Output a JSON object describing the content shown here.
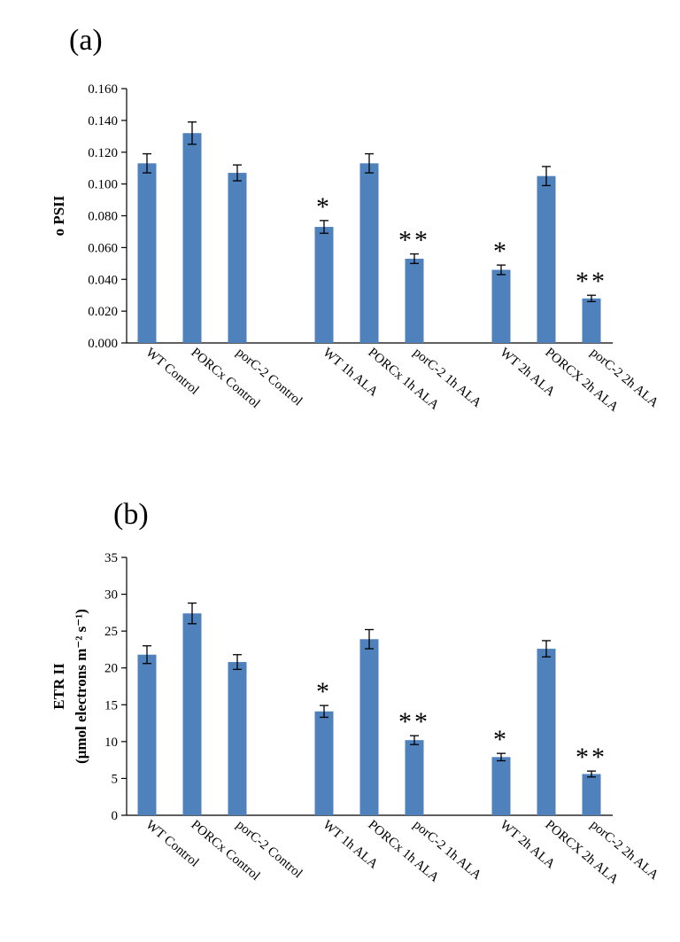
{
  "chart_data": [
    {
      "type": "bar",
      "panel_label": "(a)",
      "title": "",
      "xlabel": "",
      "ylabel": "ο PSII",
      "ylim": [
        0,
        0.16
      ],
      "ytick_step": 0.02,
      "ytick_labels": [
        "0.000",
        "0.020",
        "0.040",
        "0.060",
        "0.080",
        "0.100",
        "0.120",
        "0.140",
        "0.160"
      ],
      "categories": [
        "WT Control",
        "PORCx Control",
        "porC-2 Control",
        "WT 1h ALA",
        "PORCx 1h ALA",
        "porC-2 1h ALA",
        "WT 2h ALA",
        "PORCX 2h ALA",
        "porC-2 2h ALA"
      ],
      "groups": [
        [
          0,
          1,
          2
        ],
        [
          3,
          4,
          5
        ],
        [
          6,
          7,
          8
        ]
      ],
      "values": [
        0.113,
        0.132,
        0.107,
        0.073,
        0.113,
        0.053,
        0.046,
        0.105,
        0.028
      ],
      "errors": [
        0.006,
        0.007,
        0.005,
        0.004,
        0.006,
        0.003,
        0.003,
        0.006,
        0.002
      ],
      "annotations": [
        "",
        "",
        "",
        "*",
        "",
        "**",
        "*",
        "",
        "**"
      ],
      "bar_color": "#4f81bd",
      "grid": false,
      "legend": "none"
    },
    {
      "type": "bar",
      "panel_label": "(b)",
      "title": "",
      "xlabel": "",
      "ylabel": "ETR II",
      "ylabel_line2": "(μmol electrons m⁻² s⁻¹)",
      "ylim": [
        0,
        35
      ],
      "ytick_step": 5,
      "ytick_labels": [
        "0",
        "5",
        "10",
        "15",
        "20",
        "25",
        "30",
        "35"
      ],
      "categories": [
        "WT Control",
        "PORCx Control",
        "porC-2 Control",
        "WT 1h ALA",
        "PORCx 1h ALA",
        "porC-2 1h ALA",
        "WT 2h ALA",
        "PORCX 2h ALA",
        "porC-2 2h ALA"
      ],
      "groups": [
        [
          0,
          1,
          2
        ],
        [
          3,
          4,
          5
        ],
        [
          6,
          7,
          8
        ]
      ],
      "values": [
        21.8,
        27.4,
        20.8,
        14.1,
        23.9,
        10.2,
        7.9,
        22.6,
        5.6
      ],
      "errors": [
        1.2,
        1.4,
        1.0,
        0.8,
        1.3,
        0.6,
        0.5,
        1.1,
        0.4
      ],
      "annotations": [
        "",
        "",
        "",
        "*",
        "",
        "**",
        "*",
        "",
        "**"
      ],
      "bar_color": "#4f81bd",
      "grid": false,
      "legend": "none"
    }
  ]
}
